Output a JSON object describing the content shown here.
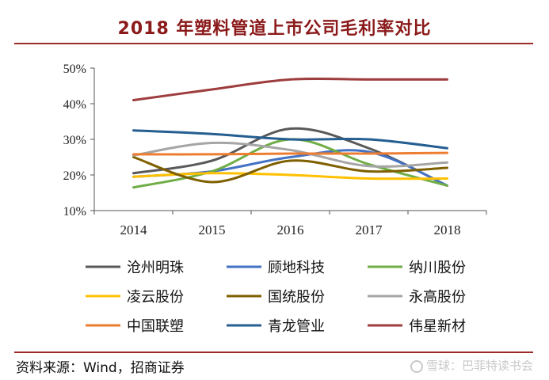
{
  "header": {
    "title": "2018 年塑料管道上市公司毛利率对比"
  },
  "footer": {
    "source": "资料来源：Wind，招商证券",
    "watermark": "雪球：巴菲特读书会"
  },
  "colors": {
    "accent": "#9b2b27",
    "title": "#8b1a1a"
  },
  "chart_data": {
    "type": "line",
    "title": "2018 年塑料管道上市公司毛利率对比",
    "x": [
      "2014",
      "2015",
      "2016",
      "2017",
      "2018"
    ],
    "ylim": [
      10,
      50
    ],
    "yticks": [
      10,
      20,
      30,
      40,
      50
    ],
    "ytick_labels": [
      "10%",
      "20%",
      "30%",
      "40%",
      "50%"
    ],
    "legend_position": "bottom",
    "series": [
      {
        "name": "沧州明珠",
        "color": "#595959",
        "values": [
          20.5,
          24.0,
          33.0,
          27.5,
          17.0
        ]
      },
      {
        "name": "顾地科技",
        "color": "#4472c4",
        "values": [
          19.5,
          21.0,
          25.0,
          26.5,
          17.0
        ]
      },
      {
        "name": "纳川股份",
        "color": "#70ad47",
        "values": [
          16.5,
          21.0,
          30.0,
          23.0,
          17.0
        ]
      },
      {
        "name": "凌云股份",
        "color": "#ffc000",
        "values": [
          19.5,
          20.5,
          20.0,
          19.0,
          19.0
        ]
      },
      {
        "name": "国统股份",
        "color": "#7f6000",
        "values": [
          25.0,
          18.0,
          24.0,
          21.0,
          22.0
        ]
      },
      {
        "name": "永高股份",
        "color": "#a5a5a5",
        "values": [
          25.5,
          29.0,
          27.0,
          22.5,
          23.5
        ]
      },
      {
        "name": "中国联塑",
        "color": "#ed7d31",
        "values": [
          25.8,
          25.8,
          26.0,
          26.0,
          26.2
        ]
      },
      {
        "name": "青龙管业",
        "color": "#255e91",
        "values": [
          32.5,
          31.5,
          30.0,
          30.0,
          27.5
        ]
      },
      {
        "name": "伟星新材",
        "color": "#9e3d3d",
        "values": [
          41.0,
          44.0,
          46.8,
          46.8,
          46.8
        ]
      }
    ]
  }
}
